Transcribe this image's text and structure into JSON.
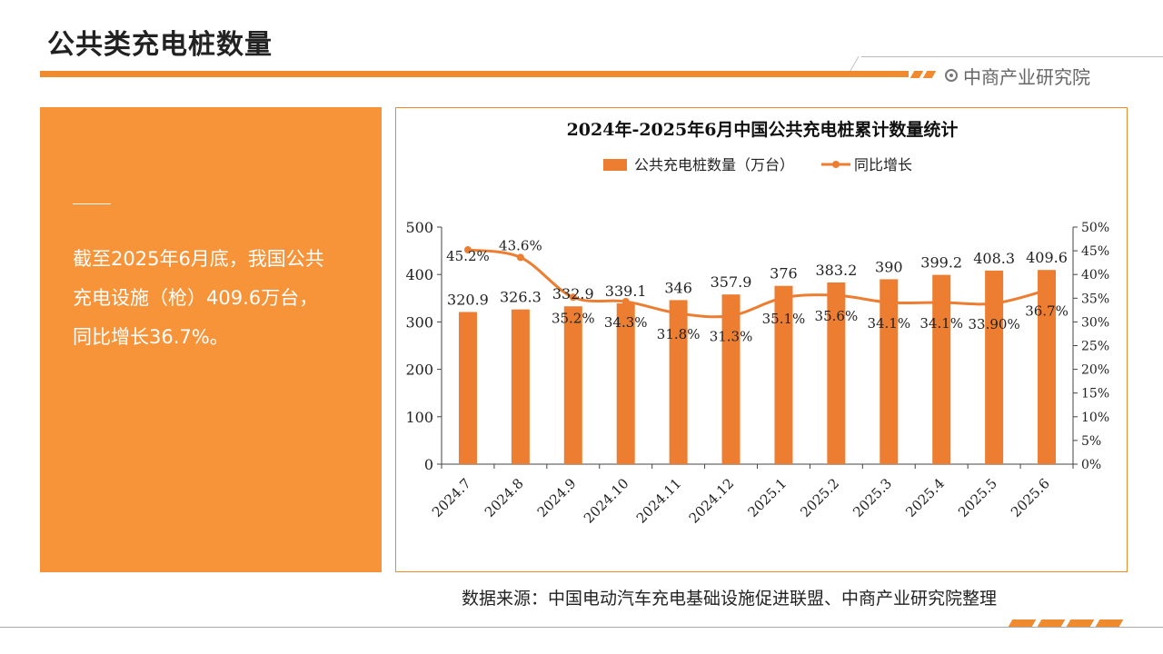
{
  "header": {
    "page_title": "公共类充电桩数量",
    "logo_text": "中商产业研究院"
  },
  "side_panel": {
    "lines": [
      "截至2025年6月底，我国公共",
      "充电设施（枪）409.6万台，",
      "同比增长36.7%。"
    ]
  },
  "source": "数据来源：中国电动汽车充电基础设施促进联盟、中商产业研究院整理",
  "colors": {
    "accent": "#f08a2e",
    "bar": "#ed7d31",
    "panel": "#f7943a"
  },
  "chart_data": {
    "type": "bar",
    "title": "2024年-2025年6月中国公共充电桩累计数量统计",
    "categories": [
      "2024.7",
      "2024.8",
      "2024.9",
      "2024.10",
      "2024.11",
      "2024.12",
      "2025.1",
      "2025.2",
      "2025.3",
      "2025.4",
      "2025.5",
      "2025.6"
    ],
    "series": [
      {
        "name": "公共充电桩数量（万台）",
        "type": "bar",
        "axis": "left",
        "values": [
          320.9,
          326.3,
          332.9,
          339.1,
          346,
          357.9,
          376,
          383.2,
          390,
          399.2,
          408.3,
          409.6
        ],
        "labels": [
          "320.9",
          "326.3",
          "332.9",
          "339.1",
          "346",
          "357.9",
          "376",
          "383.2",
          "390",
          "399.2",
          "408.3",
          "409.6"
        ]
      },
      {
        "name": "同比增长",
        "type": "line",
        "axis": "right",
        "values": [
          45.2,
          43.6,
          35.2,
          34.3,
          31.8,
          31.3,
          35.1,
          35.6,
          34.1,
          34.1,
          33.9,
          36.7
        ],
        "labels": [
          "45.2%",
          "43.6%",
          "35.2%",
          "34.3%",
          "31.8%",
          "31.3%",
          "35.1%",
          "35.6%",
          "34.1%",
          "34.1%",
          "33.90%",
          "36.7%"
        ]
      }
    ],
    "y_left": {
      "min": 0,
      "max": 500,
      "ticks": [
        "0",
        "100",
        "200",
        "300",
        "400",
        "500"
      ]
    },
    "y_right": {
      "min": 0,
      "max": 50,
      "ticks": [
        "0%",
        "5%",
        "10%",
        "15%",
        "20%",
        "25%",
        "30%",
        "35%",
        "40%",
        "45%",
        "50%"
      ]
    },
    "legend_position": "top-center",
    "grid": false
  }
}
